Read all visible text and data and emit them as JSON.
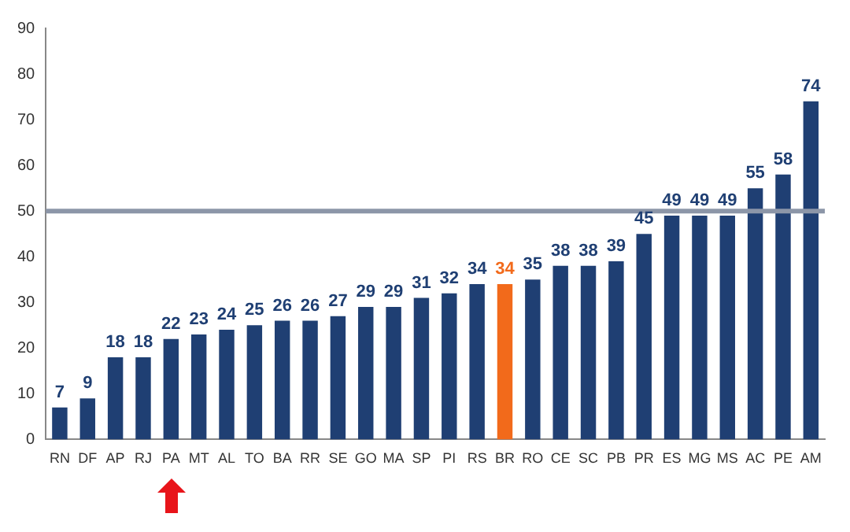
{
  "chart_data": {
    "type": "bar",
    "categories": [
      "RN",
      "DF",
      "AP",
      "RJ",
      "PA",
      "MT",
      "AL",
      "TO",
      "BA",
      "RR",
      "SE",
      "GO",
      "MA",
      "SP",
      "PI",
      "RS",
      "BR",
      "RO",
      "CE",
      "SC",
      "PB",
      "PR",
      "ES",
      "MG",
      "MS",
      "AC",
      "PE",
      "AM"
    ],
    "values": [
      7,
      9,
      18,
      18,
      22,
      23,
      24,
      25,
      26,
      26,
      27,
      29,
      29,
      31,
      32,
      34,
      34,
      35,
      38,
      38,
      39,
      45,
      49,
      49,
      49,
      55,
      58,
      74
    ],
    "colors": [
      "#1f3f73",
      "#1f3f73",
      "#1f3f73",
      "#1f3f73",
      "#1f3f73",
      "#1f3f73",
      "#1f3f73",
      "#1f3f73",
      "#1f3f73",
      "#1f3f73",
      "#1f3f73",
      "#1f3f73",
      "#1f3f73",
      "#1f3f73",
      "#1f3f73",
      "#1f3f73",
      "#f26a1b",
      "#1f3f73",
      "#1f3f73",
      "#1f3f73",
      "#1f3f73",
      "#1f3f73",
      "#1f3f73",
      "#1f3f73",
      "#1f3f73",
      "#1f3f73",
      "#1f3f73",
      "#1f3f73"
    ],
    "ylim": [
      0,
      90
    ],
    "yticks": [
      0,
      10,
      20,
      30,
      40,
      50,
      60,
      70,
      80,
      90
    ],
    "ref_lines": [
      {
        "axis": "y",
        "value": 50,
        "color": "#8c96a8"
      }
    ],
    "data_labels": true,
    "grid": false,
    "legend": false
  }
}
